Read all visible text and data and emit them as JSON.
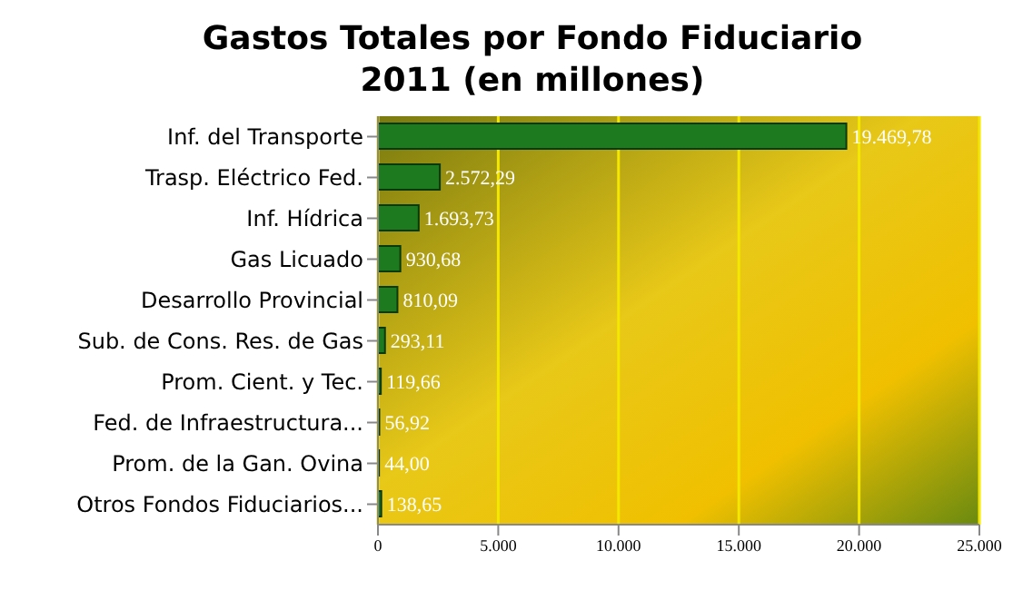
{
  "chart_data": {
    "type": "bar",
    "orientation": "horizontal",
    "title": "Gastos Totales por Fondo Fiduciario 2011 (en millones)",
    "categories": [
      "Inf. del Transporte",
      "Trasp. Eléctrico Fed.",
      "Inf. Hídrica",
      "Gas Licuado",
      "Desarrollo Provincial",
      "Sub. de Cons. Res. de Gas",
      "Prom. Cient. y Tec.",
      "Fed. de Infraestructura...",
      "Prom. de la Gan. Ovina",
      "Otros Fondos Fiduciarios..."
    ],
    "values": [
      19469.78,
      2572.29,
      1693.73,
      930.68,
      810.09,
      293.11,
      119.66,
      56.92,
      44.0,
      138.65
    ],
    "value_labels": [
      "19.469,78",
      "2.572,29",
      "1.693,73",
      "930,68",
      "810,09",
      "293,11",
      "119,66",
      "56,92",
      "44,00",
      "138,65"
    ],
    "color": "#1e7a1e",
    "xlim": [
      0,
      25000
    ],
    "xticks": [
      0,
      {
        "value": 5000,
        "label": "5.000"
      },
      {
        "value": 10000,
        "label": "10.000"
      },
      {
        "value": 15000,
        "label": "15.000"
      },
      {
        "value": 20000,
        "label": "20.000"
      },
      {
        "value": 25000,
        "label": "25.000"
      }
    ],
    "grid": "x",
    "legend": false
  }
}
